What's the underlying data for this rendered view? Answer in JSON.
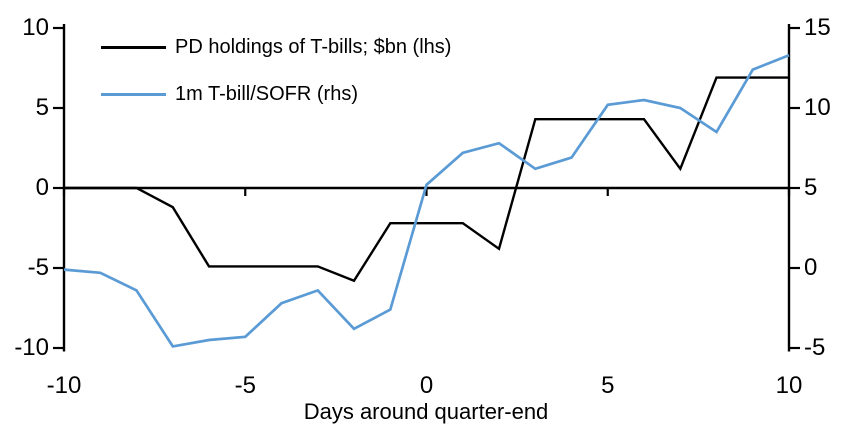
{
  "chart_data": {
    "type": "line",
    "xlabel": "Days around quarter-end",
    "grid": false,
    "legend_position": "top-left",
    "axis_color": "#000000",
    "background_color": "#ffffff",
    "x": [
      -10,
      -9,
      -8,
      -7,
      -6,
      -5,
      -4,
      -3,
      -2,
      -1,
      0,
      1,
      2,
      3,
      4,
      5,
      6,
      7,
      8,
      9,
      10
    ],
    "series": [
      {
        "name": "PD holdings of T-bills; $bn (lhs)",
        "axis": "left",
        "color": "#000000",
        "values": [
          0.0,
          0.0,
          0.0,
          -1.2,
          -4.9,
          -4.9,
          -4.9,
          -4.9,
          -5.8,
          -2.2,
          -2.2,
          -2.2,
          -3.8,
          4.3,
          4.3,
          4.3,
          4.3,
          1.2,
          6.9,
          6.9,
          6.9
        ]
      },
      {
        "name": "1m T-bill/SOFR (rhs)",
        "axis": "right",
        "color": "#5B9BD5",
        "values": [
          -0.1,
          -0.3,
          -1.4,
          -4.9,
          -4.5,
          -4.3,
          -2.2,
          -1.4,
          -3.8,
          -2.6,
          5.2,
          7.2,
          7.8,
          6.2,
          6.9,
          10.2,
          10.5,
          10.0,
          8.5,
          12.4,
          13.3
        ]
      }
    ],
    "x_axis": {
      "min": -10,
      "max": 10,
      "ticks": [
        -10,
        -5,
        0,
        5,
        10
      ],
      "tick_labels": [
        "-10",
        "-5",
        "0",
        "5",
        "10"
      ]
    },
    "left_axis": {
      "min": -10,
      "max": 10,
      "ticks": [
        10,
        5,
        0,
        -5,
        -10
      ],
      "tick_labels": [
        "10",
        "5",
        "0",
        "-5",
        "-10"
      ]
    },
    "right_axis": {
      "min": -5,
      "max": 15,
      "ticks": [
        15,
        10,
        5,
        0,
        -5
      ],
      "tick_labels": [
        "15",
        "10",
        "5",
        "0",
        "-5"
      ]
    }
  }
}
